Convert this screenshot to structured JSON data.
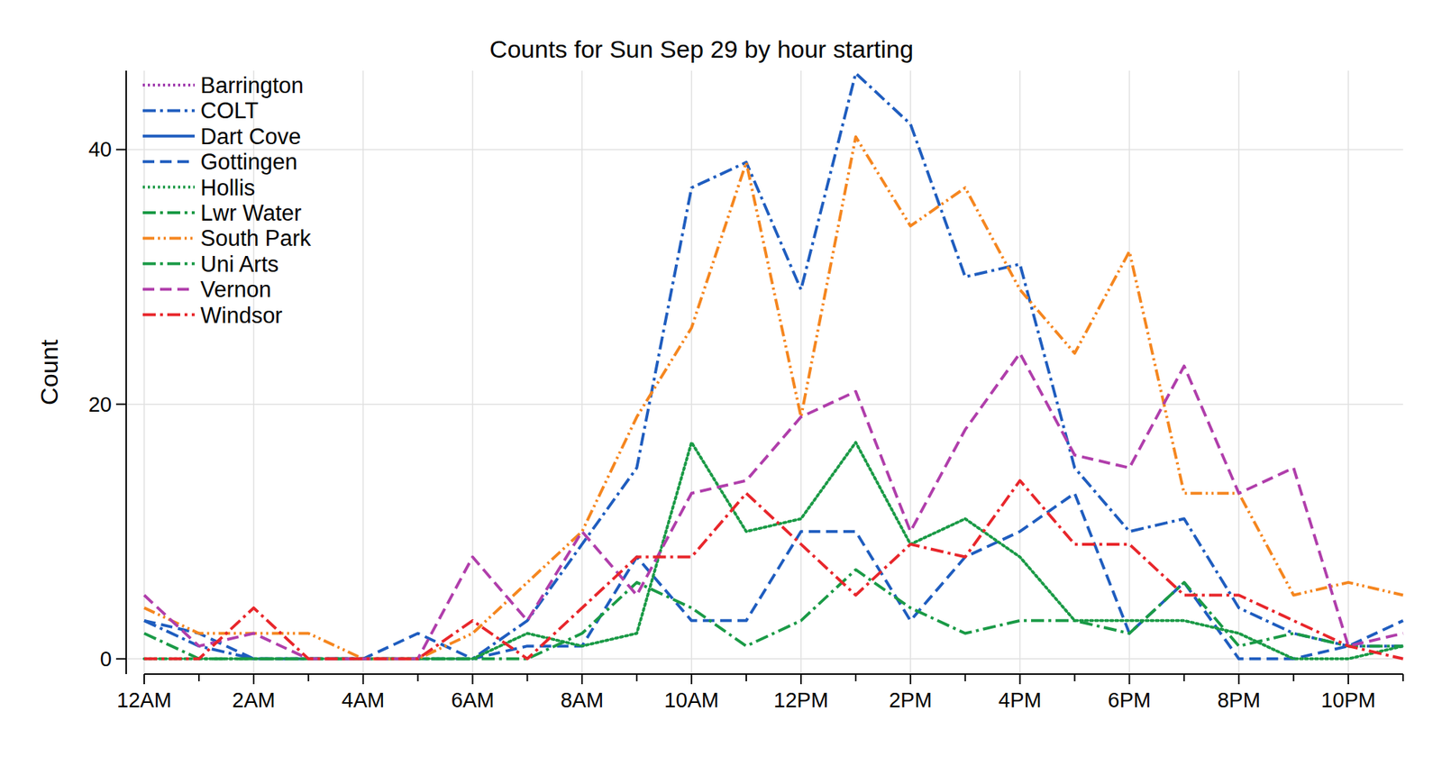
{
  "chart_data": {
    "type": "line",
    "title": "Counts for Sun Sep 29 by hour starting",
    "y_label": "Count",
    "categories": [
      "12AM",
      null,
      "2AM",
      null,
      "4AM",
      null,
      "6AM",
      null,
      "8AM",
      null,
      "10AM",
      null,
      "12PM",
      null,
      "2PM",
      null,
      "4PM",
      null,
      "6PM",
      null,
      "8PM",
      null,
      "10PM",
      null
    ],
    "ylim": [
      -1.2,
      46.2
    ],
    "yticks": [
      0,
      20,
      40
    ],
    "grid": true,
    "legend": "top-left",
    "series": [
      {
        "name": "Barrington",
        "color": "#a23fb0",
        "line_style": "dotted",
        "values": [
          null,
          null,
          null,
          null,
          null,
          null,
          null,
          null,
          null,
          null,
          null,
          null,
          null,
          null,
          null,
          null,
          null,
          null,
          null,
          null,
          null,
          null,
          null,
          null
        ]
      },
      {
        "name": "COLT",
        "color": "#1f5dbf",
        "line_style": "dashdot",
        "values": [
          3,
          1,
          0,
          0,
          0,
          0,
          0,
          3,
          9,
          15,
          37,
          39,
          29,
          46,
          42,
          30,
          31,
          15,
          10,
          11,
          4,
          2,
          1,
          1
        ]
      },
      {
        "name": "Dart Cove",
        "color": "#1f5dbf",
        "line_style": "solid",
        "values": [
          null,
          null,
          null,
          null,
          null,
          null,
          null,
          null,
          null,
          null,
          null,
          null,
          null,
          null,
          null,
          null,
          null,
          null,
          null,
          null,
          null,
          null,
          null,
          null
        ]
      },
      {
        "name": "Gottingen",
        "color": "#1f5dbf",
        "line_style": "dashed",
        "values": [
          3,
          2,
          0,
          0,
          0,
          2,
          0,
          1,
          1,
          8,
          3,
          3,
          10,
          10,
          3,
          8,
          10,
          13,
          2,
          6,
          0,
          0,
          1,
          3
        ]
      },
      {
        "name": "Hollis",
        "color": "#1a9a46",
        "line_style": "dotted",
        "values": [
          0,
          0,
          0,
          0,
          0,
          0,
          0,
          2,
          1,
          2,
          17,
          10,
          11,
          17,
          9,
          11,
          8,
          3,
          3,
          3,
          2,
          0,
          0,
          1
        ]
      },
      {
        "name": "Lwr Water",
        "color": "#1a9a46",
        "line_style": "dashdot",
        "values": [
          2,
          0,
          0,
          0,
          0,
          0,
          0,
          0,
          2,
          6,
          4,
          1,
          3,
          7,
          4,
          2,
          3,
          3,
          2,
          6,
          1,
          2,
          1,
          1
        ]
      },
      {
        "name": "South Park",
        "color": "#f5861f",
        "line_style": "dashdotdot",
        "values": [
          4,
          2,
          2,
          2,
          0,
          0,
          2,
          6,
          10,
          19,
          26,
          39,
          19,
          41,
          34,
          37,
          29,
          24,
          32,
          13,
          13,
          5,
          6,
          5
        ]
      },
      {
        "name": "Uni Arts",
        "color": "#1a9a46",
        "line_style": "dashdot",
        "values": [
          null,
          null,
          null,
          null,
          null,
          null,
          null,
          null,
          null,
          null,
          null,
          null,
          null,
          null,
          null,
          null,
          null,
          null,
          null,
          null,
          null,
          null,
          null,
          null
        ]
      },
      {
        "name": "Vernon",
        "color": "#b03eab",
        "line_style": "dashed",
        "values": [
          5,
          1,
          2,
          0,
          0,
          0,
          8,
          3,
          10,
          5,
          13,
          14,
          19,
          21,
          10,
          18,
          24,
          16,
          15,
          23,
          13,
          15,
          1,
          2
        ]
      },
      {
        "name": "Windsor",
        "color": "#e8262b",
        "line_style": "dashdot",
        "values": [
          0,
          0,
          4,
          0,
          0,
          0,
          3,
          0,
          4,
          8,
          8,
          13,
          9,
          5,
          9,
          8,
          14,
          9,
          9,
          5,
          5,
          3,
          1,
          0
        ]
      }
    ]
  }
}
